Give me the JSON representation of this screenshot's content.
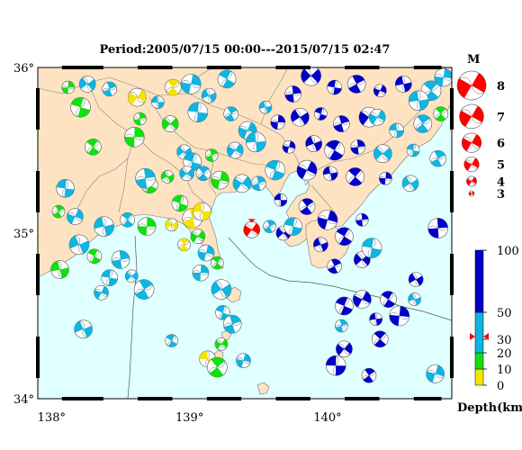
{
  "title": "Period:2005/07/15 00:00---2015/07/15 02:47",
  "colors": {
    "sea": "#e0ffff",
    "land": "#fde3c2",
    "depth_0_10": "#f4e400",
    "depth_10_20": "#10e010",
    "depth_20_50": "#10b4e0",
    "depth_50_100": "#0000c8",
    "highlight": "#ff0000"
  },
  "chart_data": {
    "type": "scatter",
    "x_axis": {
      "range": [
        137.9,
        140.9
      ],
      "ticks": [
        {
          "value": 138,
          "label": "138°"
        },
        {
          "value": 139,
          "label": "139°"
        },
        {
          "value": 140,
          "label": "140°"
        }
      ]
    },
    "y_axis": {
      "range": [
        34.0,
        36.0
      ],
      "ticks": [
        {
          "value": 34,
          "label": "34°"
        },
        {
          "value": 35,
          "label": "35°"
        },
        {
          "value": 36,
          "label": "36°"
        }
      ]
    },
    "magnitude_legend": {
      "title": "M",
      "items": [
        {
          "label": "8",
          "value": 8
        },
        {
          "label": "7",
          "value": 7
        },
        {
          "label": "6",
          "value": 6
        },
        {
          "label": "5",
          "value": 5
        },
        {
          "label": "4",
          "value": 4
        },
        {
          "label": "3",
          "value": 3
        }
      ]
    },
    "depth_scale": {
      "title": "Depth(km)",
      "ticks": [
        {
          "value": 100,
          "label": "100"
        },
        {
          "value": 50,
          "label": "50"
        },
        {
          "value": 30,
          "label": "30"
        },
        {
          "value": 20,
          "label": "20"
        },
        {
          "value": 10,
          "label": "10"
        },
        {
          "value": 0,
          "label": "0"
        }
      ],
      "marked_depth": 32
    },
    "highlight_event": {
      "lon": 139.45,
      "lat": 35.02,
      "depth": 32
    },
    "events": [
      {
        "lon": 138.12,
        "lat": 35.88,
        "d": 15
      },
      {
        "lon": 138.26,
        "lat": 35.9,
        "d": 30
      },
      {
        "lon": 138.21,
        "lat": 35.76,
        "d": 15
      },
      {
        "lon": 138.42,
        "lat": 35.87,
        "d": 20
      },
      {
        "lon": 138.62,
        "lat": 35.82,
        "d": 5
      },
      {
        "lon": 138.77,
        "lat": 35.79,
        "d": 30
      },
      {
        "lon": 138.88,
        "lat": 35.88,
        "d": 5
      },
      {
        "lon": 139.01,
        "lat": 35.9,
        "d": 30
      },
      {
        "lon": 139.14,
        "lat": 35.83,
        "d": 40
      },
      {
        "lon": 139.27,
        "lat": 35.93,
        "d": 25
      },
      {
        "lon": 138.64,
        "lat": 35.69,
        "d": 10
      },
      {
        "lon": 138.86,
        "lat": 35.66,
        "d": 15
      },
      {
        "lon": 139.06,
        "lat": 35.73,
        "d": 35
      },
      {
        "lon": 139.3,
        "lat": 35.72,
        "d": 40
      },
      {
        "lon": 139.42,
        "lat": 35.62,
        "d": 45
      },
      {
        "lon": 139.55,
        "lat": 35.76,
        "d": 45
      },
      {
        "lon": 138.3,
        "lat": 35.52,
        "d": 10
      },
      {
        "lon": 138.6,
        "lat": 35.58,
        "d": 15
      },
      {
        "lon": 138.96,
        "lat": 35.49,
        "d": 30
      },
      {
        "lon": 139.02,
        "lat": 35.43,
        "d": 20
      },
      {
        "lon": 139.16,
        "lat": 35.47,
        "d": 15
      },
      {
        "lon": 139.33,
        "lat": 35.5,
        "d": 35
      },
      {
        "lon": 139.48,
        "lat": 35.55,
        "d": 40
      },
      {
        "lon": 139.1,
        "lat": 35.36,
        "d": 20
      },
      {
        "lon": 139.22,
        "lat": 35.32,
        "d": 15
      },
      {
        "lon": 138.84,
        "lat": 35.34,
        "d": 10
      },
      {
        "lon": 138.71,
        "lat": 35.29,
        "d": 15
      },
      {
        "lon": 138.68,
        "lat": 35.33,
        "d": 20
      },
      {
        "lon": 138.98,
        "lat": 35.36,
        "d": 40
      },
      {
        "lon": 138.1,
        "lat": 35.27,
        "d": 35
      },
      {
        "lon": 138.05,
        "lat": 35.13,
        "d": 15
      },
      {
        "lon": 138.17,
        "lat": 35.1,
        "d": 40
      },
      {
        "lon": 138.38,
        "lat": 35.04,
        "d": 30
      },
      {
        "lon": 138.55,
        "lat": 35.08,
        "d": 20
      },
      {
        "lon": 138.69,
        "lat": 35.04,
        "d": 15
      },
      {
        "lon": 138.87,
        "lat": 35.05,
        "d": 5
      },
      {
        "lon": 138.93,
        "lat": 35.18,
        "d": 10
      },
      {
        "lon": 139.02,
        "lat": 35.09,
        "d": 5
      },
      {
        "lon": 139.06,
        "lat": 34.98,
        "d": 10
      },
      {
        "lon": 139.09,
        "lat": 35.13,
        "d": 8
      },
      {
        "lon": 138.96,
        "lat": 34.93,
        "d": 5
      },
      {
        "lon": 139.12,
        "lat": 34.88,
        "d": 20
      },
      {
        "lon": 138.2,
        "lat": 34.93,
        "d": 30
      },
      {
        "lon": 138.31,
        "lat": 34.86,
        "d": 15
      },
      {
        "lon": 138.5,
        "lat": 34.84,
        "d": 35
      },
      {
        "lon": 138.58,
        "lat": 34.74,
        "d": 40
      },
      {
        "lon": 138.42,
        "lat": 34.73,
        "d": 30
      },
      {
        "lon": 138.67,
        "lat": 34.66,
        "d": 20
      },
      {
        "lon": 138.36,
        "lat": 34.64,
        "d": 35
      },
      {
        "lon": 138.06,
        "lat": 34.78,
        "d": 15
      },
      {
        "lon": 139.2,
        "lat": 34.82,
        "d": 15
      },
      {
        "lon": 139.08,
        "lat": 34.76,
        "d": 25
      },
      {
        "lon": 139.23,
        "lat": 34.66,
        "d": 20
      },
      {
        "lon": 139.24,
        "lat": 34.52,
        "d": 20
      },
      {
        "lon": 139.31,
        "lat": 34.45,
        "d": 25
      },
      {
        "lon": 139.23,
        "lat": 34.33,
        "d": 15
      },
      {
        "lon": 139.13,
        "lat": 34.24,
        "d": 5
      },
      {
        "lon": 139.2,
        "lat": 34.19,
        "d": 10
      },
      {
        "lon": 139.39,
        "lat": 34.23,
        "d": 25
      },
      {
        "lon": 138.23,
        "lat": 34.42,
        "d": 35
      },
      {
        "lon": 138.87,
        "lat": 34.35,
        "d": 30
      },
      {
        "lon": 139.75,
        "lat": 35.84,
        "d": 80
      },
      {
        "lon": 139.88,
        "lat": 35.95,
        "d": 70
      },
      {
        "lon": 140.05,
        "lat": 35.88,
        "d": 60
      },
      {
        "lon": 140.21,
        "lat": 35.9,
        "d": 70
      },
      {
        "lon": 140.38,
        "lat": 35.86,
        "d": 55
      },
      {
        "lon": 140.55,
        "lat": 35.9,
        "d": 50
      },
      {
        "lon": 140.75,
        "lat": 35.86,
        "d": 40
      },
      {
        "lon": 139.64,
        "lat": 35.67,
        "d": 65
      },
      {
        "lon": 139.8,
        "lat": 35.7,
        "d": 70
      },
      {
        "lon": 139.95,
        "lat": 35.72,
        "d": 80
      },
      {
        "lon": 140.1,
        "lat": 35.66,
        "d": 55
      },
      {
        "lon": 140.3,
        "lat": 35.7,
        "d": 60
      },
      {
        "lon": 140.5,
        "lat": 35.62,
        "d": 45
      },
      {
        "lon": 140.69,
        "lat": 35.66,
        "d": 35
      },
      {
        "lon": 139.72,
        "lat": 35.52,
        "d": 70
      },
      {
        "lon": 139.9,
        "lat": 35.54,
        "d": 80
      },
      {
        "lon": 140.05,
        "lat": 35.5,
        "d": 65
      },
      {
        "lon": 140.22,
        "lat": 35.52,
        "d": 70
      },
      {
        "lon": 140.4,
        "lat": 35.48,
        "d": 45
      },
      {
        "lon": 140.62,
        "lat": 35.5,
        "d": 40
      },
      {
        "lon": 140.8,
        "lat": 35.45,
        "d": 30
      },
      {
        "lon": 139.85,
        "lat": 35.38,
        "d": 60
      },
      {
        "lon": 140.02,
        "lat": 35.36,
        "d": 70
      },
      {
        "lon": 140.2,
        "lat": 35.34,
        "d": 60
      },
      {
        "lon": 140.42,
        "lat": 35.33,
        "d": 50
      },
      {
        "lon": 140.6,
        "lat": 35.3,
        "d": 40
      },
      {
        "lon": 139.62,
        "lat": 35.38,
        "d": 45
      },
      {
        "lon": 139.5,
        "lat": 35.3,
        "d": 40
      },
      {
        "lon": 139.38,
        "lat": 35.3,
        "d": 35
      },
      {
        "lon": 139.66,
        "lat": 35.2,
        "d": 55
      },
      {
        "lon": 139.85,
        "lat": 35.16,
        "d": 60
      },
      {
        "lon": 140.0,
        "lat": 35.08,
        "d": 70
      },
      {
        "lon": 139.95,
        "lat": 34.93,
        "d": 80
      },
      {
        "lon": 140.12,
        "lat": 34.98,
        "d": 70
      },
      {
        "lon": 140.25,
        "lat": 35.08,
        "d": 60
      },
      {
        "lon": 140.25,
        "lat": 34.84,
        "d": 70
      },
      {
        "lon": 140.32,
        "lat": 34.91,
        "d": 40
      },
      {
        "lon": 140.05,
        "lat": 34.8,
        "d": 55
      },
      {
        "lon": 140.25,
        "lat": 34.6,
        "d": 60
      },
      {
        "lon": 140.35,
        "lat": 34.48,
        "d": 65
      },
      {
        "lon": 140.38,
        "lat": 34.36,
        "d": 60
      },
      {
        "lon": 140.52,
        "lat": 34.5,
        "d": 70
      },
      {
        "lon": 140.64,
        "lat": 34.72,
        "d": 50
      },
      {
        "lon": 140.12,
        "lat": 34.56,
        "d": 75
      },
      {
        "lon": 140.1,
        "lat": 34.44,
        "d": 45
      },
      {
        "lon": 140.12,
        "lat": 34.3,
        "d": 60
      },
      {
        "lon": 140.06,
        "lat": 34.2,
        "d": 70
      },
      {
        "lon": 140.3,
        "lat": 34.14,
        "d": 65
      },
      {
        "lon": 140.78,
        "lat": 34.15,
        "d": 40
      },
      {
        "lon": 140.63,
        "lat": 34.6,
        "d": 35
      },
      {
        "lon": 140.44,
        "lat": 34.6,
        "d": 60
      },
      {
        "lon": 140.8,
        "lat": 35.03,
        "d": 70
      },
      {
        "lon": 139.68,
        "lat": 35.0,
        "d": 50
      },
      {
        "lon": 139.75,
        "lat": 35.04,
        "d": 35
      },
      {
        "lon": 139.58,
        "lat": 35.04,
        "d": 45
      },
      {
        "lon": 140.36,
        "lat": 35.7,
        "d": 25
      },
      {
        "lon": 140.66,
        "lat": 35.8,
        "d": 20
      },
      {
        "lon": 140.82,
        "lat": 35.72,
        "d": 15
      },
      {
        "lon": 140.84,
        "lat": 35.94,
        "d": 45
      }
    ]
  }
}
